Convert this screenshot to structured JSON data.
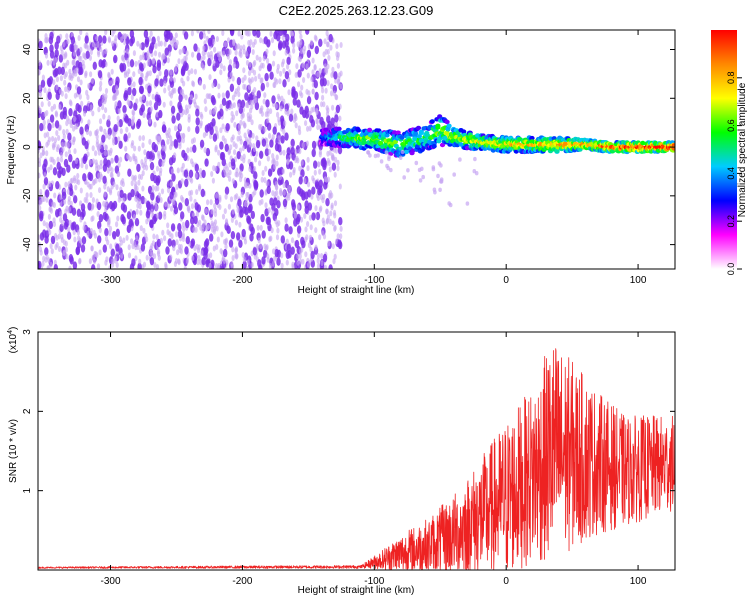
{
  "title": "C2E2.2025.263.12.23.G09",
  "colors": {
    "series": "#ee2222",
    "axis": "#000000",
    "point": "#7a2ee8",
    "point_light": "#c6a5f2"
  },
  "chart_data": [
    {
      "type": "heatmap",
      "xlabel": "Height of straight line (km)",
      "ylabel": "Frequency (Hz)",
      "xlim": [
        -355,
        128
      ],
      "ylim": [
        -50,
        48
      ],
      "x_ticks": [
        -300,
        -200,
        -100,
        0,
        100
      ],
      "x_tick_labels": [
        "-300",
        "-200",
        "-100",
        "0",
        "100"
      ],
      "y_ticks": [
        -40,
        -20,
        0,
        20,
        40
      ],
      "y_tick_labels": [
        "-40",
        "-20",
        "0",
        "20",
        "40"
      ],
      "noise_region": {
        "x_range": [
          -355,
          -125
        ],
        "y_range": [
          -50,
          48
        ],
        "amplitude_range": [
          0.02,
          0.2
        ]
      },
      "signal_track": {
        "x": [
          -140,
          -120,
          -100,
          -80,
          -60,
          -50,
          -40,
          -20,
          0,
          20,
          40,
          60,
          80,
          100,
          128
        ],
        "center_freq": [
          4,
          4,
          3,
          1,
          4,
          7,
          4,
          2,
          1,
          1,
          1,
          1,
          0,
          0,
          0
        ],
        "half_width": [
          3,
          4,
          4,
          5,
          5,
          6,
          4,
          3,
          3,
          3,
          3,
          2,
          2,
          2,
          2
        ],
        "amplitude": [
          0.35,
          0.5,
          0.6,
          0.55,
          0.5,
          0.6,
          0.6,
          0.65,
          0.7,
          0.72,
          0.75,
          0.8,
          0.85,
          0.92,
          0.95
        ]
      },
      "colorbar": {
        "label": "Normalized spectral amplitude",
        "range": [
          0,
          1
        ],
        "ticks": [
          0.0,
          0.2,
          0.4,
          0.6,
          0.8
        ],
        "tick_labels": [
          "0.0",
          "0.2",
          "0.4",
          "0.6",
          "0.8"
        ],
        "stops": [
          "#ffffff",
          "#ff00ff",
          "#0000ff",
          "#00ccff",
          "#00ff00",
          "#ffff00",
          "#ff8800",
          "#ff0000"
        ]
      }
    },
    {
      "type": "line",
      "xlabel": "Height of straight line (km)",
      "ylabel": "SNR (10 * v/v)",
      "y_multiplier_base": "(x10",
      "y_multiplier_exp": "4",
      "y_multiplier_close": ")",
      "xlim": [
        -355,
        128
      ],
      "ylim": [
        0,
        3
      ],
      "x_ticks": [
        -300,
        -200,
        -100,
        0,
        100
      ],
      "x_tick_labels": [
        "-300",
        "-200",
        "-100",
        "0",
        "100"
      ],
      "y_ticks": [
        1,
        2,
        3
      ],
      "y_tick_labels": [
        "1",
        "2",
        "3"
      ],
      "series": [
        {
          "name": "SNR",
          "envelope_x": [
            -355,
            -110,
            -100,
            -80,
            -60,
            -40,
            -20,
            0,
            20,
            35,
            50,
            70,
            90,
            110,
            128
          ],
          "envelope_mean": [
            0.03,
            0.04,
            0.1,
            0.2,
            0.3,
            0.45,
            0.65,
            0.9,
            1.2,
            1.5,
            1.45,
            1.35,
            1.25,
            1.3,
            1.35
          ],
          "envelope_amp": [
            0.01,
            0.02,
            0.08,
            0.25,
            0.35,
            0.5,
            0.75,
            1.0,
            1.1,
            1.45,
            1.2,
            0.9,
            0.7,
            0.65,
            0.6
          ]
        }
      ]
    }
  ]
}
